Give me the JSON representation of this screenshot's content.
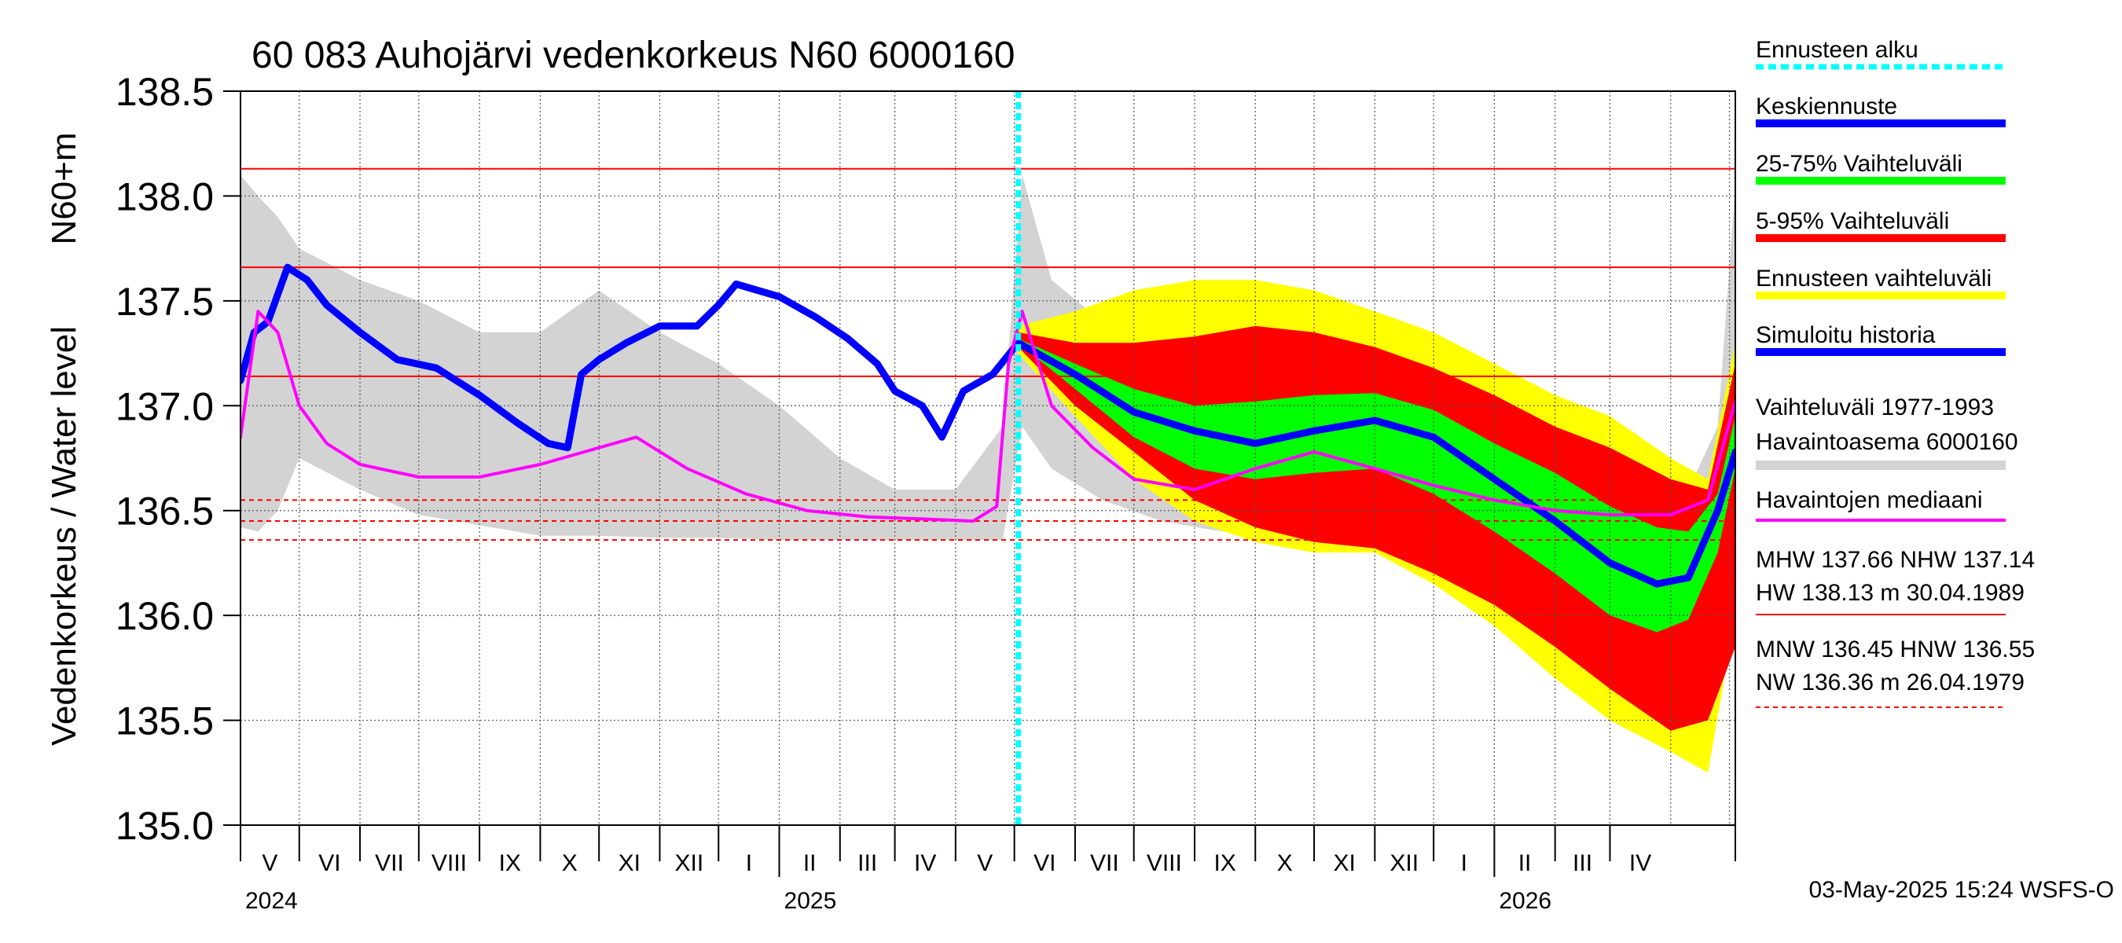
{
  "chart_data": {
    "type": "line",
    "title": "60 083 Auhojärvi vedenkorkeus N60 6000160",
    "ylabel_top": "N60+m",
    "ylabel": "Vedenkorkeus / Water level",
    "ylim": [
      135.0,
      138.5
    ],
    "yticks": [
      "135.0",
      "135.5",
      "136.0",
      "136.5",
      "137.0",
      "137.5",
      "138.0",
      "138.5"
    ],
    "x_start": "2024-04-01",
    "x_end": "2026-05-04",
    "forecast_start": "2025-05-03",
    "months": [
      "V",
      "VI",
      "VII",
      "VIII",
      "IX",
      "X",
      "XI",
      "XII",
      "I",
      "II",
      "III",
      "IV",
      "V",
      "VI",
      "VII",
      "VIII",
      "IX",
      "X",
      "XI",
      "XII",
      "I",
      "II",
      "III",
      "IV"
    ],
    "years": [
      "2024",
      "2025",
      "2026"
    ],
    "grid": true,
    "legend_position": "right",
    "reference_lines": [
      {
        "name": "HW",
        "value": 138.13,
        "style": "solid"
      },
      {
        "name": "MHW",
        "value": 137.66,
        "style": "solid"
      },
      {
        "name": "NHW",
        "value": 137.14,
        "style": "solid"
      },
      {
        "name": "HNW",
        "value": 136.55,
        "style": "dashed"
      },
      {
        "name": "MNW",
        "value": 136.45,
        "style": "dashed"
      },
      {
        "name": "NW",
        "value": 136.36,
        "style": "dashed"
      }
    ],
    "series": [
      {
        "name": "Simuloitu historia",
        "color": "#0000ff",
        "x": [
          "2024-04-01",
          "2024-04-08",
          "2024-04-15",
          "2024-04-25",
          "2024-05-05",
          "2024-05-15",
          "2024-06-01",
          "2024-06-20",
          "2024-07-10",
          "2024-08-01",
          "2024-08-20",
          "2024-09-05",
          "2024-09-15",
          "2024-09-22",
          "2024-10-01",
          "2024-10-15",
          "2024-11-01",
          "2024-11-20",
          "2024-12-01",
          "2024-12-10",
          "2025-01-01",
          "2025-01-20",
          "2025-02-05",
          "2025-02-20",
          "2025-03-01",
          "2025-03-15",
          "2025-03-25",
          "2025-04-05",
          "2025-04-20",
          "2025-05-03"
        ],
        "values": [
          137.12,
          137.35,
          137.4,
          137.66,
          137.6,
          137.48,
          137.35,
          137.22,
          137.18,
          137.05,
          136.92,
          136.82,
          136.8,
          137.15,
          137.22,
          137.3,
          137.38,
          137.38,
          137.48,
          137.58,
          137.52,
          137.42,
          137.32,
          137.2,
          137.07,
          137.0,
          136.85,
          137.07,
          137.15,
          137.3
        ]
      },
      {
        "name": "Keskiennuste",
        "color": "#0000ff",
        "x": [
          "2025-05-03",
          "2025-06-01",
          "2025-07-01",
          "2025-08-01",
          "2025-09-01",
          "2025-10-01",
          "2025-11-01",
          "2025-12-01",
          "2026-01-01",
          "2026-02-01",
          "2026-03-01",
          "2026-03-25",
          "2026-04-10",
          "2026-04-25",
          "2026-05-04"
        ],
        "values": [
          137.3,
          137.15,
          136.97,
          136.88,
          136.82,
          136.88,
          136.93,
          136.85,
          136.65,
          136.45,
          136.25,
          136.15,
          136.18,
          136.5,
          136.78
        ]
      },
      {
        "name": "Havaintojen mediaani",
        "color": "#ff00ff",
        "x": [
          "2024-04-01",
          "2024-04-10",
          "2024-04-20",
          "2024-05-01",
          "2024-05-15",
          "2024-06-01",
          "2024-07-01",
          "2024-08-01",
          "2024-09-01",
          "2024-10-01",
          "2024-10-20",
          "2024-11-15",
          "2024-12-15",
          "2025-01-15",
          "2025-02-15",
          "2025-03-15",
          "2025-04-10",
          "2025-04-22",
          "2025-04-28",
          "2025-05-05",
          "2025-05-20",
          "2025-06-10",
          "2025-07-01",
          "2025-08-01",
          "2025-09-01",
          "2025-10-01",
          "2025-11-01",
          "2025-12-01",
          "2026-01-01",
          "2026-02-01",
          "2026-03-01",
          "2026-04-01",
          "2026-04-20",
          "2026-05-04"
        ],
        "values": [
          136.85,
          137.45,
          137.35,
          137.0,
          136.82,
          136.72,
          136.66,
          136.66,
          136.72,
          136.8,
          136.85,
          136.7,
          136.58,
          136.5,
          136.47,
          136.46,
          136.45,
          136.52,
          137.2,
          137.45,
          137.0,
          136.8,
          136.65,
          136.6,
          136.7,
          136.78,
          136.7,
          136.62,
          136.55,
          136.5,
          136.48,
          136.48,
          136.55,
          137.02
        ]
      }
    ],
    "bands": [
      {
        "name": "Vaihteluväli 1977-1993",
        "subtitle": "Havaintoasema 6000160",
        "color": "#d3d3d3",
        "x": [
          "2024-04-01",
          "2024-04-10",
          "2024-04-20",
          "2024-05-01",
          "2024-06-01",
          "2024-07-01",
          "2024-08-01",
          "2024-09-01",
          "2024-10-01",
          "2024-11-01",
          "2024-12-01",
          "2025-01-01",
          "2025-02-01",
          "2025-03-01",
          "2025-04-01",
          "2025-04-25",
          "2025-05-05",
          "2025-05-20",
          "2025-06-15",
          "2025-07-15",
          "2025-08-15",
          "2025-09-15",
          "2025-10-15",
          "2025-11-15",
          "2025-12-15",
          "2026-01-15",
          "2026-02-15",
          "2026-03-15",
          "2026-04-10",
          "2026-04-25",
          "2026-05-04"
        ],
        "lower": [
          136.42,
          136.4,
          136.5,
          136.75,
          136.6,
          136.48,
          136.43,
          136.38,
          136.38,
          136.37,
          136.37,
          136.36,
          136.36,
          136.36,
          136.36,
          136.36,
          136.9,
          136.7,
          136.55,
          136.45,
          136.4,
          136.38,
          136.38,
          136.38,
          136.37,
          136.37,
          136.36,
          136.36,
          136.36,
          136.36,
          136.4
        ],
        "upper": [
          138.1,
          138.0,
          137.9,
          137.75,
          137.6,
          137.5,
          137.35,
          137.35,
          137.55,
          137.35,
          137.2,
          137.0,
          136.75,
          136.6,
          136.6,
          136.9,
          138.1,
          137.6,
          137.4,
          137.2,
          137.1,
          136.95,
          136.85,
          136.8,
          136.75,
          136.7,
          136.65,
          136.62,
          136.6,
          136.9,
          138.05
        ]
      },
      {
        "name": "Ennusteen vaihteluväli",
        "color": "#ffff00",
        "x": [
          "2025-05-03",
          "2025-06-01",
          "2025-07-01",
          "2025-08-01",
          "2025-09-01",
          "2025-10-01",
          "2025-11-01",
          "2025-12-01",
          "2026-01-01",
          "2026-02-01",
          "2026-03-01",
          "2026-04-01",
          "2026-04-20",
          "2026-05-04"
        ],
        "lower": [
          137.25,
          136.95,
          136.65,
          136.45,
          136.35,
          136.3,
          136.3,
          136.15,
          135.95,
          135.7,
          135.5,
          135.35,
          135.25,
          136.0
        ],
        "upper": [
          137.38,
          137.45,
          137.55,
          137.6,
          137.6,
          137.55,
          137.45,
          137.35,
          137.2,
          137.05,
          136.95,
          136.75,
          136.65,
          137.3
        ]
      },
      {
        "name": "5-95% Vaihteluväli",
        "color": "#ff0000",
        "x": [
          "2025-05-03",
          "2025-06-01",
          "2025-07-01",
          "2025-08-01",
          "2025-09-01",
          "2025-10-01",
          "2025-11-01",
          "2025-12-01",
          "2026-01-01",
          "2026-02-01",
          "2026-03-01",
          "2026-04-01",
          "2026-04-20",
          "2026-05-04"
        ],
        "lower": [
          137.28,
          137.0,
          136.78,
          136.55,
          136.42,
          136.35,
          136.32,
          136.2,
          136.05,
          135.85,
          135.65,
          135.45,
          135.5,
          135.85
        ],
        "upper": [
          137.35,
          137.3,
          137.3,
          137.33,
          137.38,
          137.35,
          137.28,
          137.18,
          137.05,
          136.9,
          136.8,
          136.65,
          136.6,
          137.2
        ]
      },
      {
        "name": "25-75% Vaihteluväli",
        "color": "#00ff00",
        "x": [
          "2025-05-03",
          "2025-06-01",
          "2025-07-01",
          "2025-08-01",
          "2025-09-01",
          "2025-10-01",
          "2025-11-01",
          "2025-12-01",
          "2026-01-01",
          "2026-02-01",
          "2026-03-01",
          "2026-03-25",
          "2026-04-10",
          "2026-04-25",
          "2026-05-04"
        ],
        "lower": [
          137.3,
          137.08,
          136.85,
          136.7,
          136.65,
          136.68,
          136.7,
          136.58,
          136.4,
          136.2,
          136.0,
          135.92,
          135.98,
          136.3,
          136.7
        ],
        "upper": [
          137.32,
          137.2,
          137.08,
          137.0,
          137.02,
          137.05,
          137.06,
          136.98,
          136.82,
          136.68,
          136.52,
          136.42,
          136.4,
          136.58,
          136.95
        ]
      }
    ],
    "annotations": [
      {
        "x": "2025-05-03",
        "label": "Ennusteen alku",
        "color": "#00ffff",
        "style": "dotted"
      }
    ]
  },
  "legend": {
    "items": [
      {
        "label": "Ennusteen alku",
        "color": "#00ffff",
        "style": "dotted"
      },
      {
        "label": "Keskiennuste",
        "color": "#0000ff",
        "style": "solid"
      },
      {
        "label": "25-75% Vaihteluväli",
        "color": "#00ff00",
        "style": "solid"
      },
      {
        "label": "5-95% Vaihteluväli",
        "color": "#ff0000",
        "style": "solid"
      },
      {
        "label": "Ennusteen vaihteluväli",
        "color": "#ffff00",
        "style": "solid"
      },
      {
        "label": "Simuloitu historia",
        "color": "#0000ff",
        "style": "solid"
      },
      {
        "label": "Vaihteluväli 1977-1993",
        "label2": " Havaintoasema 6000160",
        "color": "#d3d3d3",
        "style": "solid"
      },
      {
        "label": "Havaintojen mediaani",
        "color": "#ff00ff",
        "style": "solid"
      }
    ],
    "stats": {
      "high_line1": "MHW 137.66 NHW 137.14",
      "high_line2": "HW 138.13 m 30.04.1989",
      "high_color": "#ff0000",
      "low_line1": "MNW 136.45 HNW 136.55",
      "low_line2": "NW 136.36 m 26.04.1979",
      "low_color": "#ff0000"
    }
  },
  "footer": "03-May-2025 15:24 WSFS-O"
}
